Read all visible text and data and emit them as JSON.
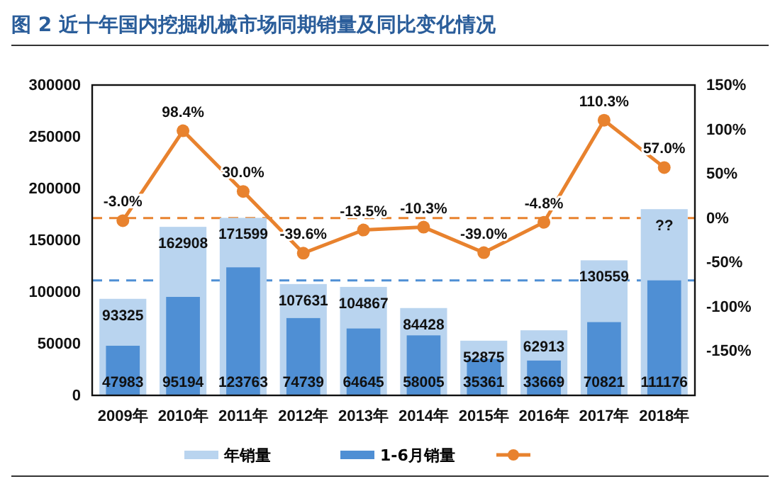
{
  "chart_data": {
    "type": "bar",
    "title": "图 2   近十年国内挖掘机械市场同期销量及同比变化情况",
    "categories": [
      "2009年",
      "2010年",
      "2011年",
      "2012年",
      "2013年",
      "2014年",
      "2015年",
      "2016年",
      "2017年",
      "2018年"
    ],
    "series": [
      {
        "name": "年销量",
        "color": "#b9d4ef",
        "values": [
          93325,
          162908,
          171599,
          107631,
          104867,
          84428,
          52875,
          62913,
          130559,
          180000
        ],
        "value_labels": [
          "93325",
          "162908",
          "171599",
          "107631",
          "104867",
          "84428",
          "52875",
          "62913",
          "130559",
          "??"
        ]
      },
      {
        "name": "1-6月销量",
        "color": "#4f8fd4",
        "values": [
          47983,
          95194,
          123763,
          74739,
          64645,
          58005,
          35361,
          33669,
          70821,
          111176
        ],
        "value_labels": [
          "47983",
          "95194",
          "123763",
          "74739",
          "64645",
          "58005",
          "35361",
          "33669",
          "70821",
          "111176"
        ]
      },
      {
        "type": "line",
        "axis": "y2",
        "color": "#e8822e",
        "marker": "circle",
        "values": [
          -3.0,
          98.4,
          30.0,
          -39.6,
          -13.5,
          -10.3,
          -39.0,
          -4.8,
          110.3,
          57.0
        ],
        "value_labels": [
          "-3.0%",
          "98.4%",
          "30.0%",
          "-39.6%",
          "-13.5%",
          "-10.3%",
          "-39.0%",
          "-4.8%",
          "110.3%",
          "57.0%"
        ]
      }
    ],
    "ylim": [
      0,
      300000
    ],
    "yticks": [
      0,
      50000,
      100000,
      150000,
      200000,
      250000,
      300000
    ],
    "y2lim": [
      -200,
      150
    ],
    "y2ticks": [
      {
        "value": -150,
        "label": "-150%"
      },
      {
        "value": -100,
        "label": "-100%"
      },
      {
        "value": -50,
        "label": "-50%"
      },
      {
        "value": 0,
        "label": "0%"
      },
      {
        "value": 50,
        "label": "50%"
      },
      {
        "value": 100,
        "label": "100%"
      },
      {
        "value": 150,
        "label": "150%"
      }
    ],
    "ref_lines": [
      {
        "axis": "y2",
        "value": 0,
        "color": "#e8822e",
        "line_style": "dashed"
      },
      {
        "axis": "y",
        "value": 111176,
        "color": "#4f8fd4",
        "line_style": "dashed"
      }
    ],
    "grid": false,
    "legend": "bottom"
  }
}
